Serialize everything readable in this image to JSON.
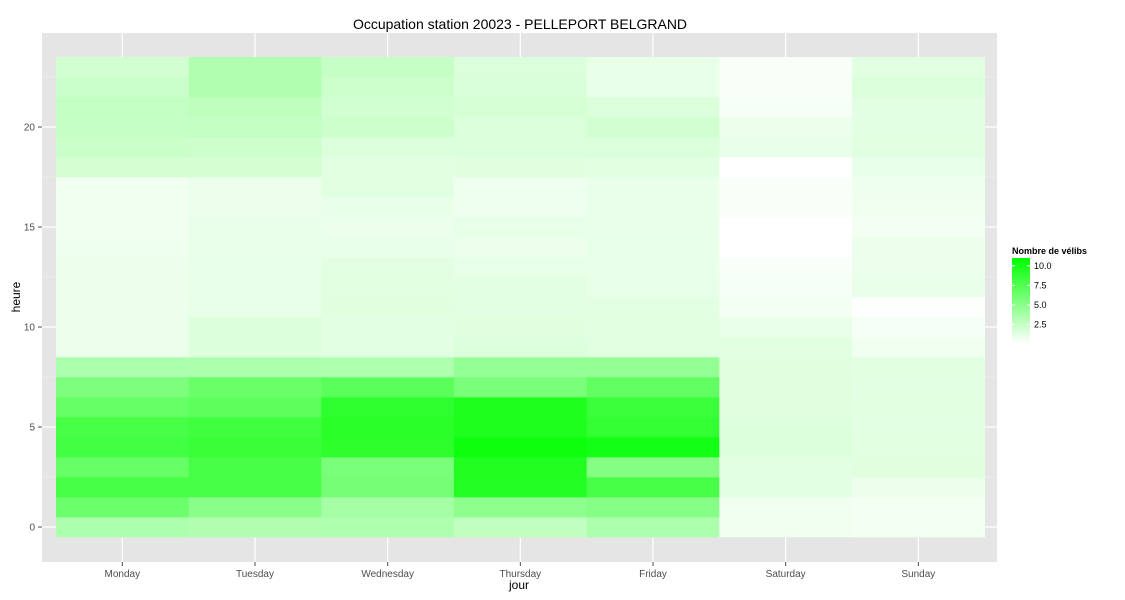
{
  "chart_data": {
    "type": "heatmap",
    "title": "Occupation station 20023 - PELLEPORT BELGRAND",
    "xlabel": "jour",
    "ylabel": "heure",
    "categories": [
      "Monday",
      "Tuesday",
      "Wednesday",
      "Thursday",
      "Friday",
      "Saturday",
      "Sunday"
    ],
    "y_ticks": [
      0,
      5,
      10,
      15,
      20
    ],
    "y_tick_labels": [
      "0",
      "5",
      "10",
      "15",
      "20"
    ],
    "ylim": [
      -0.5,
      23.5
    ],
    "grid": true,
    "legend": {
      "title": "Nombre de vélibs",
      "position": "right",
      "ticks": [
        2.5,
        5.0,
        7.5,
        10.0
      ],
      "tick_labels": [
        "2.5",
        "5.0",
        "7.5",
        "10.0"
      ],
      "range": [
        0,
        11
      ],
      "low_color": "#ffffff",
      "high_color": "#00ff00"
    },
    "hours_note": "rows indexed by hour 0..23",
    "values": {
      "Monday": [
        3.6,
        6.4,
        8.0,
        6.6,
        8.1,
        8.0,
        6.6,
        5.6,
        3.6,
        0.8,
        0.8,
        0.8,
        0.8,
        0.8,
        0.7,
        0.6,
        0.6,
        0.6,
        1.9,
        2.3,
        2.5,
        2.6,
        2.3,
        2.0
      ],
      "Tuesday": [
        3.4,
        5.1,
        7.9,
        7.9,
        8.6,
        8.3,
        7.0,
        6.5,
        3.6,
        1.5,
        1.5,
        1.1,
        1.0,
        1.0,
        0.9,
        0.9,
        0.8,
        0.8,
        1.9,
        2.2,
        2.6,
        2.8,
        3.4,
        3.4
      ],
      "Wednesday": [
        3.5,
        3.9,
        5.9,
        5.8,
        9.1,
        9.2,
        9.0,
        7.1,
        3.5,
        1.2,
        1.2,
        1.4,
        1.3,
        1.2,
        1.0,
        0.8,
        1.0,
        1.3,
        1.3,
        1.5,
        2.2,
        2.0,
        2.2,
        2.5
      ],
      "Thursday": [
        2.7,
        4.9,
        9.5,
        9.6,
        10.5,
        9.7,
        9.7,
        5.8,
        4.6,
        1.5,
        1.4,
        1.2,
        1.2,
        1.1,
        0.8,
        1.1,
        0.7,
        0.7,
        1.4,
        1.6,
        1.6,
        1.8,
        1.7,
        1.6
      ],
      "Friday": [
        3.6,
        5.2,
        7.9,
        5.3,
        10.2,
        8.8,
        8.5,
        6.8,
        4.6,
        1.3,
        1.3,
        1.2,
        1.1,
        1.0,
        1.0,
        0.9,
        0.9,
        0.9,
        1.3,
        1.6,
        2.0,
        1.6,
        1.0,
        1.0
      ],
      "Saturday": [
        0.6,
        0.6,
        1.2,
        1.2,
        1.5,
        1.5,
        1.4,
        1.4,
        1.4,
        1.3,
        0.9,
        0.5,
        0.4,
        0.3,
        0.0,
        0.0,
        0.3,
        0.3,
        0.0,
        1.0,
        0.8,
        0.4,
        0.3,
        0.3
      ],
      "Sunday": [
        0.5,
        0.5,
        0.8,
        1.4,
        1.3,
        1.2,
        1.3,
        1.2,
        1.3,
        0.6,
        0.4,
        0.1,
        0.9,
        0.8,
        0.8,
        0.5,
        0.6,
        0.7,
        1.0,
        1.3,
        1.2,
        1.2,
        1.6,
        1.3
      ]
    }
  }
}
